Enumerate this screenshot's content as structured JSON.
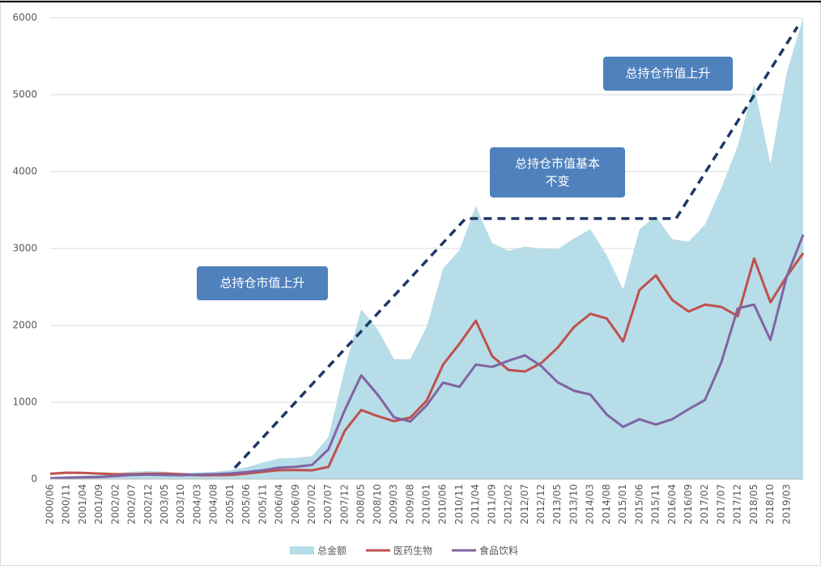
{
  "chart_data": {
    "type": "area_line",
    "categories": [
      "2000/06",
      "2000/11",
      "2001/04",
      "2001/09",
      "2002/02",
      "2002/07",
      "2002/12",
      "2003/05",
      "2003/10",
      "2004/03",
      "2004/08",
      "2005/01",
      "2005/06",
      "2005/11",
      "2006/04",
      "2006/09",
      "2007/02",
      "2007/07",
      "2007/12",
      "2008/05",
      "2008/10",
      "2009/03",
      "2009/08",
      "2010/01",
      "2010/06",
      "2010/11",
      "2011/04",
      "2011/09",
      "2012/02",
      "2012/07",
      "2012/12",
      "2013/05",
      "2013/10",
      "2014/03",
      "2014/08",
      "2015/01",
      "2015/06",
      "2015/11",
      "2016/04",
      "2016/09",
      "2017/02",
      "2017/07",
      "2017/12",
      "2018/05",
      "2018/10",
      "2019/03",
      null
    ],
    "series": [
      {
        "name": "总金额",
        "color": "#b7dde8",
        "kind": "area",
        "values": [
          30,
          40,
          48,
          56,
          76,
          98,
          107,
          97,
          80,
          89,
          95,
          117,
          155,
          216,
          270,
          278,
          300,
          548,
          1440,
          2210,
          1950,
          1560,
          1560,
          1980,
          2740,
          2980,
          3550,
          3070,
          2970,
          3025,
          3000,
          2990,
          3130,
          3250,
          2910,
          2470,
          3250,
          3420,
          3120,
          3090,
          3310,
          3790,
          4330,
          5130,
          4100,
          5290,
          6000
        ]
      },
      {
        "name": "医药生物",
        "color": "#c0504d",
        "kind": "line",
        "values": [
          70,
          84,
          81,
          73,
          65,
          64,
          71,
          73,
          64,
          51,
          52,
          54,
          72,
          96,
          117,
          118,
          115,
          159,
          630,
          900,
          820,
          755,
          800,
          1020,
          1490,
          1760,
          2060,
          1600,
          1420,
          1400,
          1510,
          1710,
          1980,
          2150,
          2090,
          1790,
          2460,
          2650,
          2330,
          2180,
          2270,
          2240,
          2120,
          2870,
          2300,
          2640,
          2940
        ]
      },
      {
        "name": "食品饮料",
        "color": "#8064a2",
        "kind": "line",
        "values": [
          10,
          19,
          24,
          28,
          41,
          54,
          59,
          54,
          50,
          59,
          64,
          74,
          92,
          116,
          150,
          160,
          185,
          388,
          900,
          1350,
          1100,
          805,
          750,
          960,
          1255,
          1200,
          1490,
          1460,
          1540,
          1610,
          1470,
          1260,
          1150,
          1100,
          840,
          680,
          780,
          710,
          780,
          910,
          1030,
          1520,
          2220,
          2270,
          1810,
          2640,
          3180
        ]
      }
    ],
    "ylim": [
      0,
      6000
    ],
    "yticks": [
      0,
      1000,
      2000,
      3000,
      4000,
      5000,
      6000
    ],
    "grid": true,
    "annotations": [
      "总持仓市值上升",
      "总持仓市值基本\n不变",
      "总持仓市值上升"
    ],
    "legend": "bottom"
  }
}
